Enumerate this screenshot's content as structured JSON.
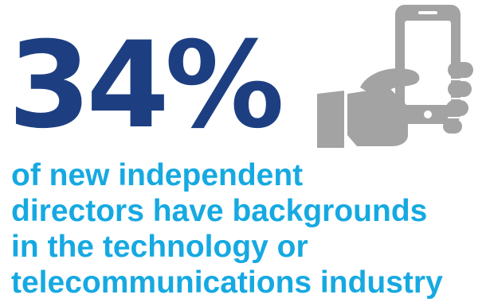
{
  "stat": {
    "value": "34%"
  },
  "icon": {
    "name": "hand-holding-smartphone-icon",
    "color": "#a3a3a3"
  },
  "caption": {
    "lines": [
      "of new independent",
      "directors have backgrounds",
      "in the technology or",
      "telecommunications industry"
    ]
  },
  "colors": {
    "stat": "#1d3f82",
    "caption": "#16a9e1",
    "background": "#ffffff"
  }
}
